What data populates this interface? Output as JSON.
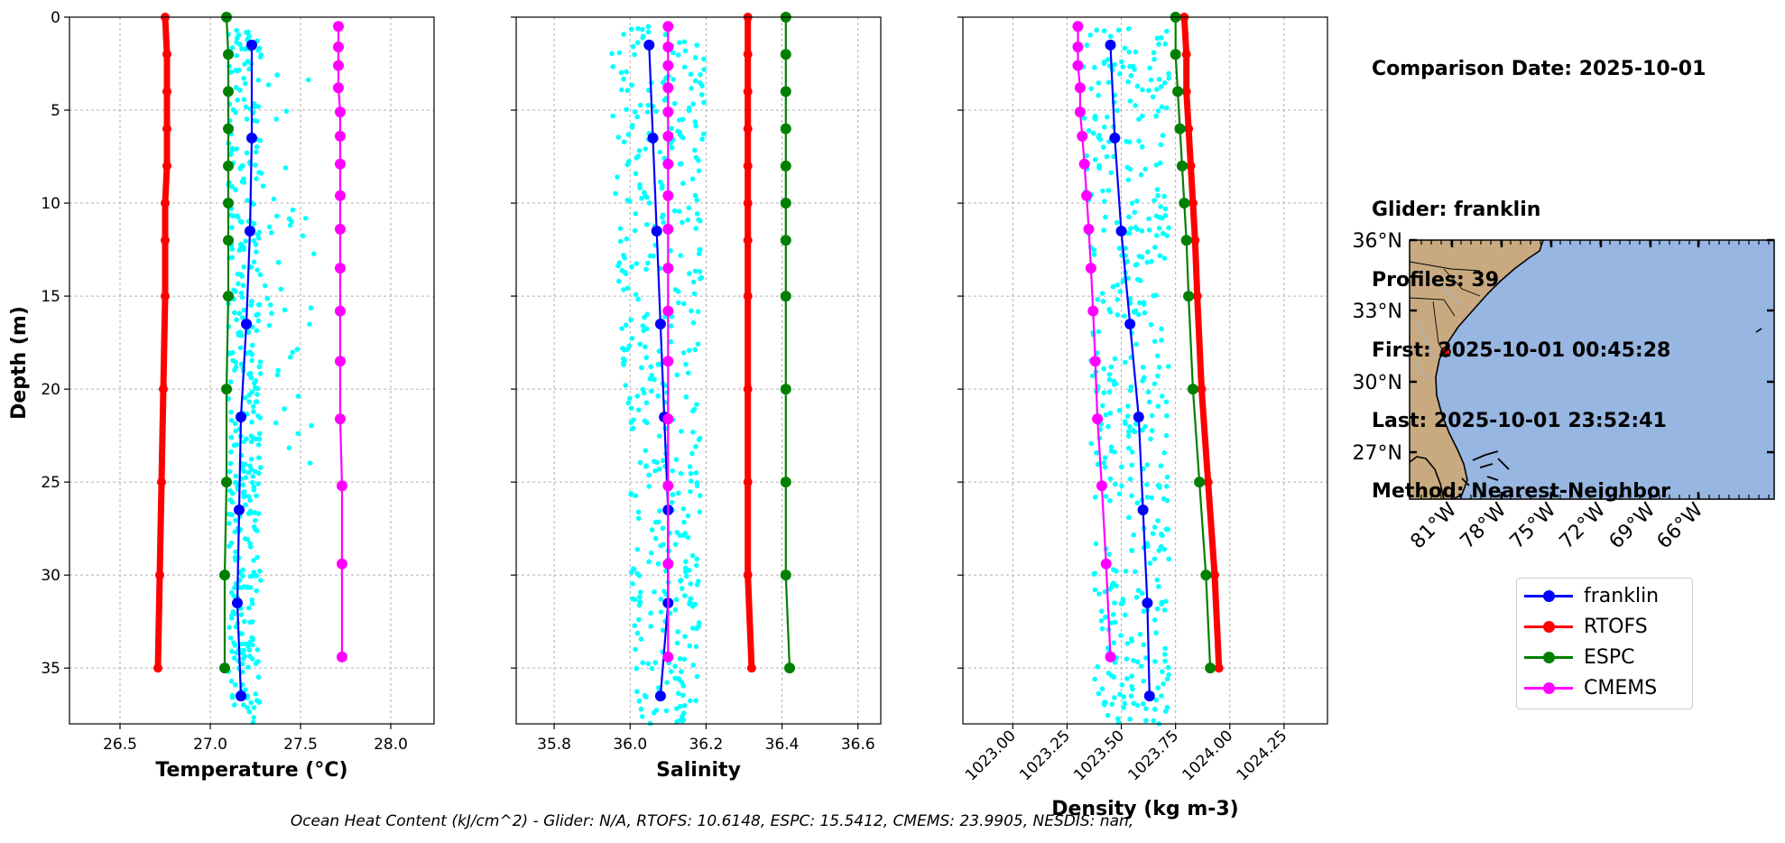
{
  "info": {
    "comparison_date": "Comparison Date: 2025-10-01",
    "glider": "Glider: franklin",
    "profiles": "Profiles: 39",
    "first": "First: 2025-10-01 00:45:28",
    "last": "Last: 2025-10-01 23:52:41",
    "method": "Method: Nearest-Neighbor"
  },
  "footer": "Ocean Heat Content (kJ/cm^2) - Glider: N/A,  RTOFS: 10.6148,  ESPC: 15.5412,  CMEMS: 23.9905,  NESDIS: nan,",
  "legend": [
    {
      "name": "franklin",
      "color": "#0000ff"
    },
    {
      "name": "RTOFS",
      "color": "#ff0000"
    },
    {
      "name": "ESPC",
      "color": "#008000"
    },
    {
      "name": "CMEMS",
      "color": "#ff00ff"
    }
  ],
  "map": {
    "lat_labels": [
      "36°N",
      "33°N",
      "30°N",
      "27°N"
    ],
    "lon_labels": [
      "81°W",
      "78°W",
      "75°W",
      "72°W",
      "69°W",
      "66°W"
    ],
    "land_color": "#c9aa80",
    "ocean_color": "#97b6e1",
    "glider_marker_color": "#ff0000"
  },
  "chart_data": [
    {
      "type": "line",
      "xlabel": "Temperature (°C)",
      "ylabel": "Depth (m)",
      "xlim": [
        26.22,
        28.24
      ],
      "ylim": [
        38,
        0
      ],
      "x_ticks": [
        "26.5",
        "27.0",
        "27.5",
        "28.0"
      ],
      "y_ticks": [
        "0",
        "5",
        "10",
        "15",
        "20",
        "25",
        "30",
        "35"
      ],
      "grid": true,
      "series": [
        {
          "name": "franklin",
          "color": "#0000ff",
          "depth": [
            1.5,
            6.5,
            11.5,
            16.5,
            21.5,
            26.5,
            31.5,
            36.5
          ],
          "values": [
            27.23,
            27.23,
            27.22,
            27.2,
            27.17,
            27.16,
            27.15,
            27.17
          ]
        },
        {
          "name": "RTOFS",
          "color": "#ff0000",
          "depth": [
            0,
            2,
            4,
            6,
            8,
            10,
            12,
            15,
            20,
            25,
            30,
            35
          ],
          "values": [
            26.75,
            26.76,
            26.76,
            26.76,
            26.76,
            26.75,
            26.75,
            26.75,
            26.74,
            26.73,
            26.72,
            26.71
          ]
        },
        {
          "name": "ESPC",
          "color": "#008000",
          "depth": [
            0,
            2,
            4,
            6,
            8,
            10,
            12,
            15,
            20,
            25,
            30,
            35
          ],
          "values": [
            27.09,
            27.1,
            27.1,
            27.1,
            27.1,
            27.1,
            27.1,
            27.1,
            27.09,
            27.09,
            27.08,
            27.08
          ]
        },
        {
          "name": "CMEMS",
          "color": "#ff00ff",
          "depth": [
            0.5,
            1.6,
            2.6,
            3.8,
            5.1,
            6.4,
            7.9,
            9.6,
            11.4,
            13.5,
            15.8,
            18.5,
            21.6,
            25.2,
            29.4,
            34.4
          ],
          "values": [
            27.71,
            27.71,
            27.71,
            27.71,
            27.72,
            27.72,
            27.72,
            27.72,
            27.72,
            27.72,
            27.72,
            27.72,
            27.72,
            27.73,
            27.73,
            27.73
          ]
        }
      ]
    },
    {
      "type": "line",
      "xlabel": "Salinity",
      "ylabel": "",
      "xlim": [
        35.7,
        36.66
      ],
      "ylim": [
        38,
        0
      ],
      "x_ticks": [
        "35.8",
        "36.0",
        "36.2",
        "36.4",
        "36.6"
      ],
      "grid": true,
      "series": [
        {
          "name": "franklin",
          "color": "#0000ff",
          "depth": [
            1.5,
            6.5,
            11.5,
            16.5,
            21.5,
            26.5,
            31.5,
            36.5
          ],
          "values": [
            36.05,
            36.06,
            36.07,
            36.08,
            36.09,
            36.1,
            36.1,
            36.08
          ]
        },
        {
          "name": "RTOFS",
          "color": "#ff0000",
          "depth": [
            0,
            2,
            4,
            6,
            8,
            10,
            12,
            15,
            20,
            25,
            30,
            35
          ],
          "values": [
            36.31,
            36.31,
            36.31,
            36.31,
            36.31,
            36.31,
            36.31,
            36.31,
            36.31,
            36.31,
            36.31,
            36.32
          ]
        },
        {
          "name": "ESPC",
          "color": "#008000",
          "depth": [
            0,
            2,
            4,
            6,
            8,
            10,
            12,
            15,
            20,
            25,
            30,
            35
          ],
          "values": [
            36.41,
            36.41,
            36.41,
            36.41,
            36.41,
            36.41,
            36.41,
            36.41,
            36.41,
            36.41,
            36.41,
            36.42
          ]
        },
        {
          "name": "CMEMS",
          "color": "#ff00ff",
          "depth": [
            0.5,
            1.6,
            2.6,
            3.8,
            5.1,
            6.4,
            7.9,
            9.6,
            11.4,
            13.5,
            15.8,
            18.5,
            21.6,
            25.2,
            29.4,
            34.4
          ],
          "values": [
            36.1,
            36.1,
            36.1,
            36.1,
            36.1,
            36.1,
            36.1,
            36.1,
            36.1,
            36.1,
            36.1,
            36.1,
            36.1,
            36.1,
            36.1,
            36.1
          ]
        }
      ]
    },
    {
      "type": "line",
      "xlabel": "Density (kg m-3)",
      "ylabel": "",
      "xlim": [
        1022.77,
        1024.45
      ],
      "ylim": [
        38,
        0
      ],
      "x_ticks": [
        "1023.00",
        "1023.25",
        "1023.50",
        "1023.75",
        "1024.00",
        "1024.25"
      ],
      "grid": true,
      "series": [
        {
          "name": "franklin",
          "color": "#0000ff",
          "depth": [
            1.5,
            6.5,
            11.5,
            16.5,
            21.5,
            26.5,
            31.5,
            36.5
          ],
          "values": [
            1023.45,
            1023.47,
            1023.5,
            1023.54,
            1023.58,
            1023.6,
            1023.62,
            1023.63
          ]
        },
        {
          "name": "RTOFS",
          "color": "#ff0000",
          "depth": [
            0,
            2,
            4,
            6,
            8,
            10,
            12,
            15,
            20,
            25,
            30,
            35
          ],
          "values": [
            1023.79,
            1023.8,
            1023.8,
            1023.81,
            1023.82,
            1023.83,
            1023.84,
            1023.85,
            1023.87,
            1023.9,
            1023.93,
            1023.95
          ]
        },
        {
          "name": "ESPC",
          "color": "#008000",
          "depth": [
            0,
            2,
            4,
            6,
            8,
            10,
            12,
            15,
            20,
            25,
            30,
            35
          ],
          "values": [
            1023.75,
            1023.75,
            1023.76,
            1023.77,
            1023.78,
            1023.79,
            1023.8,
            1023.81,
            1023.83,
            1023.86,
            1023.89,
            1023.91
          ]
        },
        {
          "name": "CMEMS",
          "color": "#ff00ff",
          "depth": [
            0.5,
            1.6,
            2.6,
            3.8,
            5.1,
            6.4,
            7.9,
            9.6,
            11.4,
            13.5,
            15.8,
            18.5,
            21.6,
            25.2,
            29.4,
            34.4
          ],
          "values": [
            1023.3,
            1023.3,
            1023.3,
            1023.31,
            1023.31,
            1023.32,
            1023.33,
            1023.34,
            1023.35,
            1023.36,
            1023.37,
            1023.38,
            1023.39,
            1023.41,
            1023.43,
            1023.45
          ]
        }
      ]
    }
  ]
}
